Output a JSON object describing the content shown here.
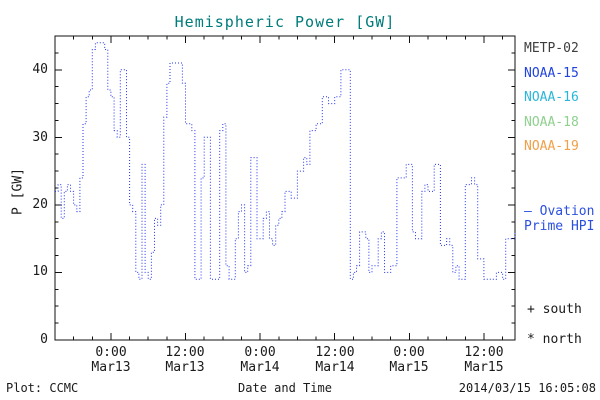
{
  "title": "Hemispheric Power [GW]",
  "title_color": "#007b7b",
  "footer": {
    "plot_credit": "Plot: CCMC",
    "timestamp": "2014/03/15 16:05:08"
  },
  "legend": {
    "satellites": [
      {
        "label": "METP-02",
        "color": "#3d3d3d"
      },
      {
        "label": "NOAA-15",
        "color": "#2244dd"
      },
      {
        "label": "NOAA-16",
        "color": "#2ab6d8"
      },
      {
        "label": "NOAA-18",
        "color": "#8fd08f"
      },
      {
        "label": "NOAA-19",
        "color": "#f0a04a"
      }
    ],
    "model_line1": "– Ovation",
    "model_line2": "Prime HPI",
    "model_color": "#2b50e0",
    "south_marker": "+ south",
    "north_marker": "* north"
  },
  "chart_data": {
    "type": "line",
    "title": "Hemispheric Power [GW]",
    "xlabel": "Date and Time",
    "ylabel": "P [GW]",
    "ylim": [
      0,
      45
    ],
    "y_ticks": [
      0,
      10,
      20,
      30,
      40
    ],
    "y_minor_step": 2.5,
    "xlim_hours": [
      -9,
      65
    ],
    "x_epoch": "hours relative to 2014-03-13 00:00",
    "x_tick_positions": [
      0,
      12,
      24,
      36,
      48,
      60
    ],
    "x_tick_times": [
      "0:00",
      "12:00",
      "0:00",
      "12:00",
      "0:00",
      "12:00"
    ],
    "x_tick_dates": [
      "Mar13",
      "Mar13",
      "Mar14",
      "Mar14",
      "Mar15",
      "Mar15"
    ],
    "x_minor_step": 3,
    "grid": false,
    "legend_position": "right",
    "series": [
      {
        "name": "Ovation Prime HPI",
        "color": "#2233ee",
        "style": "dotted-step",
        "points": [
          [
            -9,
            22
          ],
          [
            -8.5,
            23
          ],
          [
            -8,
            18
          ],
          [
            -7.5,
            22
          ],
          [
            -7,
            23
          ],
          [
            -6.5,
            22
          ],
          [
            -6,
            20
          ],
          [
            -5.5,
            19
          ],
          [
            -5,
            24
          ],
          [
            -4.5,
            32
          ],
          [
            -4,
            36
          ],
          [
            -3.5,
            37
          ],
          [
            -3,
            43
          ],
          [
            -2.5,
            44
          ],
          [
            -1.5,
            44
          ],
          [
            -1,
            43
          ],
          [
            -0.5,
            37
          ],
          [
            0,
            36
          ],
          [
            0.5,
            31
          ],
          [
            1,
            30
          ],
          [
            1.5,
            40
          ],
          [
            2.5,
            30
          ],
          [
            3,
            20
          ],
          [
            3.5,
            19
          ],
          [
            4,
            10
          ],
          [
            4.5,
            9
          ],
          [
            5,
            26
          ],
          [
            5.5,
            10
          ],
          [
            6,
            9
          ],
          [
            6.5,
            13
          ],
          [
            7,
            18
          ],
          [
            7.5,
            17
          ],
          [
            8,
            20
          ],
          [
            8.5,
            33
          ],
          [
            9,
            38
          ],
          [
            9.5,
            41
          ],
          [
            11,
            41
          ],
          [
            11.5,
            38
          ],
          [
            12,
            32
          ],
          [
            13,
            31
          ],
          [
            13.5,
            9
          ],
          [
            14.5,
            24
          ],
          [
            15,
            30
          ],
          [
            16,
            9
          ],
          [
            17,
            9
          ],
          [
            17.5,
            31
          ],
          [
            18,
            32
          ],
          [
            18.5,
            11
          ],
          [
            19,
            9
          ],
          [
            20,
            15
          ],
          [
            20.5,
            19
          ],
          [
            21,
            20
          ],
          [
            21.5,
            10
          ],
          [
            22,
            11
          ],
          [
            22.5,
            27
          ],
          [
            23.5,
            15
          ],
          [
            24,
            15
          ],
          [
            24.5,
            18
          ],
          [
            25,
            19
          ],
          [
            25.5,
            15
          ],
          [
            26,
            14
          ],
          [
            26.5,
            17
          ],
          [
            27,
            18
          ],
          [
            27.5,
            19
          ],
          [
            28,
            22
          ],
          [
            29,
            21
          ],
          [
            30,
            25
          ],
          [
            31,
            27
          ],
          [
            31.5,
            26
          ],
          [
            32,
            31
          ],
          [
            33,
            32
          ],
          [
            34,
            36
          ],
          [
            35,
            35
          ],
          [
            36,
            36
          ],
          [
            37,
            40
          ],
          [
            38,
            40
          ],
          [
            38.5,
            9
          ],
          [
            39,
            10
          ],
          [
            39.5,
            11
          ],
          [
            40,
            16
          ],
          [
            41,
            15
          ],
          [
            41.5,
            10
          ],
          [
            42,
            11
          ],
          [
            43,
            15
          ],
          [
            43.5,
            16
          ],
          [
            44,
            10
          ],
          [
            45,
            11
          ],
          [
            46,
            24
          ],
          [
            47,
            24
          ],
          [
            47.5,
            26
          ],
          [
            48.5,
            16
          ],
          [
            49,
            15
          ],
          [
            50,
            22
          ],
          [
            50.5,
            23
          ],
          [
            51,
            22
          ],
          [
            52,
            26
          ],
          [
            53,
            14
          ],
          [
            54,
            15
          ],
          [
            54.5,
            14
          ],
          [
            55,
            10
          ],
          [
            55.5,
            11
          ],
          [
            56,
            9
          ],
          [
            57,
            23
          ],
          [
            58,
            24
          ],
          [
            58.5,
            23
          ],
          [
            59,
            12
          ],
          [
            60,
            9
          ],
          [
            61,
            9
          ],
          [
            62,
            10
          ],
          [
            63,
            9
          ],
          [
            63.5,
            15
          ],
          [
            64,
            15
          ],
          [
            65,
            16
          ]
        ]
      }
    ]
  }
}
